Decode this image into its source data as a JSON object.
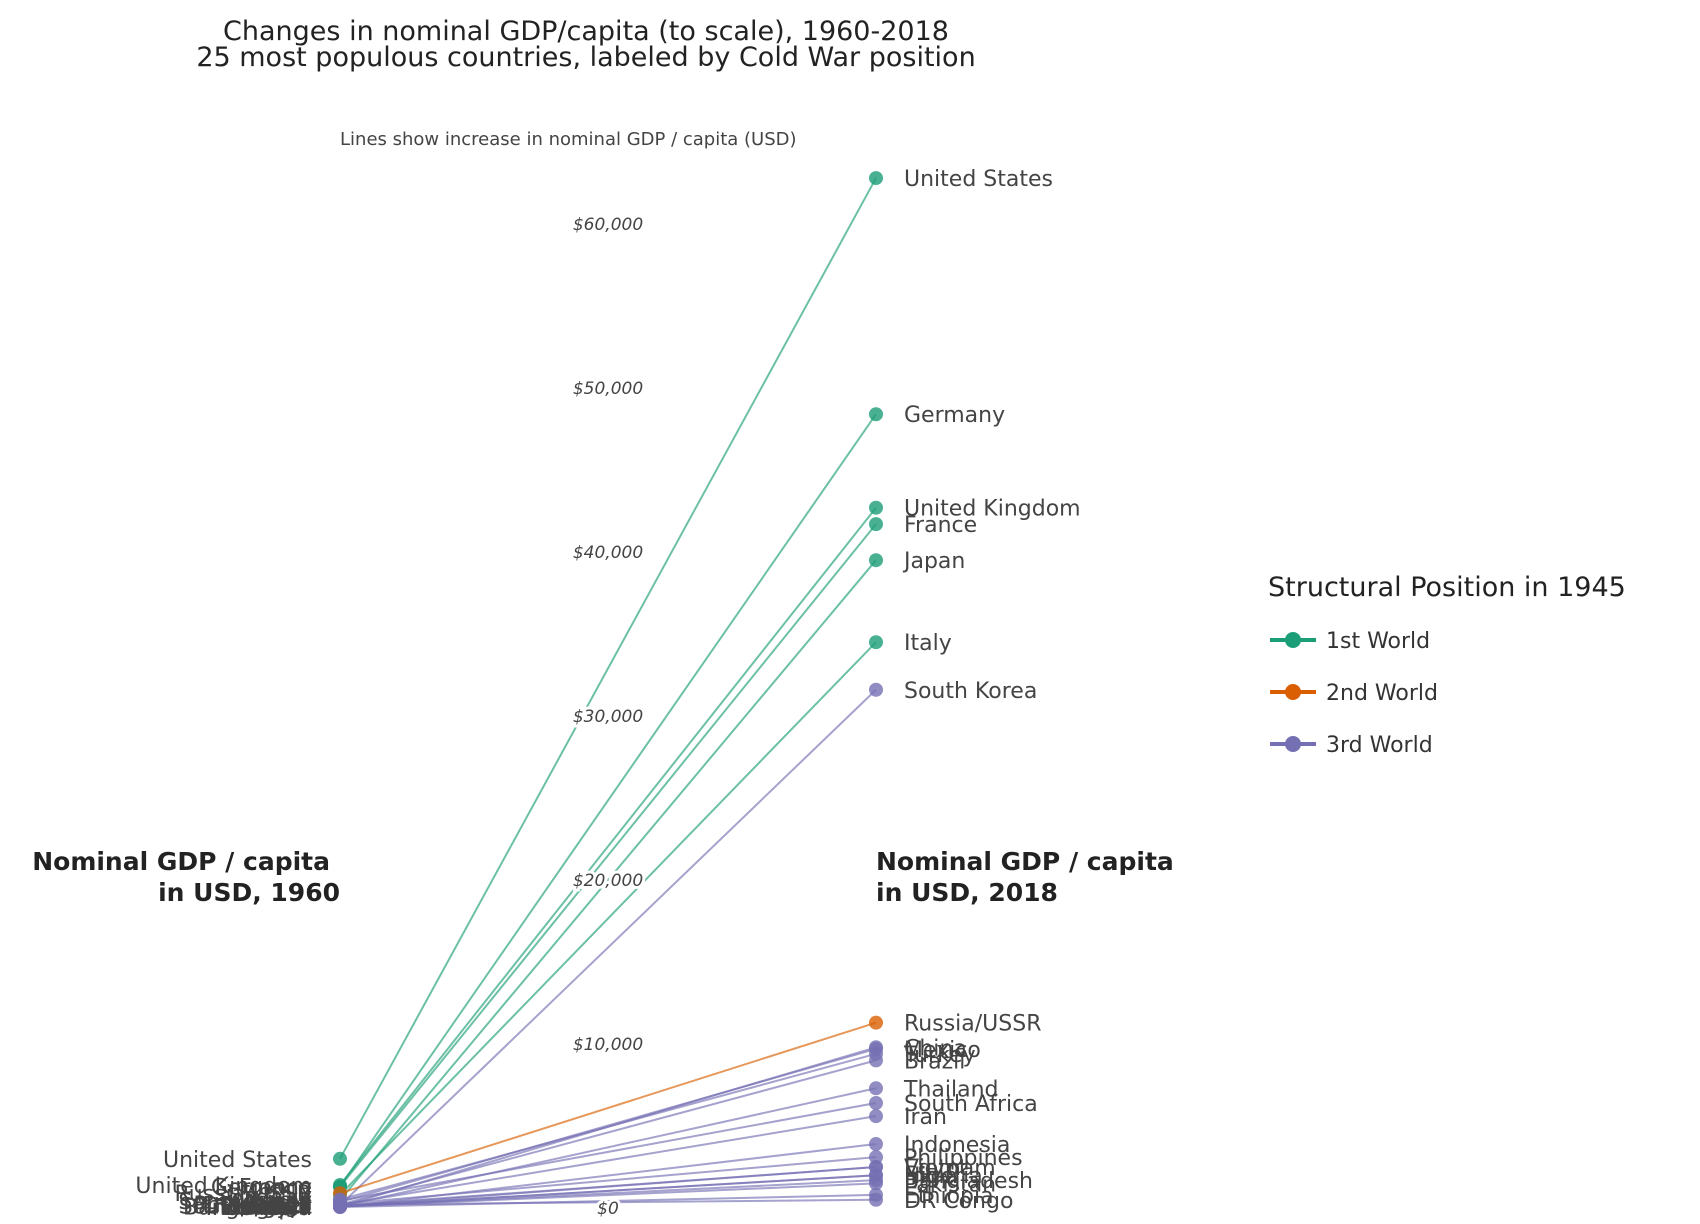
{
  "chart_data": {
    "type": "slope",
    "title": "Changes in nominal GDP/capita (to scale), 1960-2018",
    "subtitle": "25 most populous countries, labeled by Cold War position",
    "axis_note": "Lines show increase in nominal GDP / capita (USD)",
    "left_header": [
      "Nominal GDP / capita",
      "in USD, 1960"
    ],
    "right_header": [
      "Nominal GDP / capita",
      "in USD, 2018"
    ],
    "ylim": [
      0,
      65000
    ],
    "y_ticks": [
      {
        "value": 0,
        "label": "$0"
      },
      {
        "value": 10000,
        "label": "$10,000"
      },
      {
        "value": 20000,
        "label": "$20,000"
      },
      {
        "value": 30000,
        "label": "$30,000"
      },
      {
        "value": 40000,
        "label": "$40,000"
      },
      {
        "value": 50000,
        "label": "$50,000"
      },
      {
        "value": 60000,
        "label": "$60,000"
      }
    ],
    "legend": {
      "title": "Structural Position in 1945",
      "entries": [
        {
          "key": "1st",
          "label": "1st World",
          "color": "#1b9e77"
        },
        {
          "key": "2nd",
          "label": "2nd World",
          "color": "#d95f02"
        },
        {
          "key": "3rd",
          "label": "3rd World",
          "color": "#7570b3"
        }
      ]
    },
    "series": [
      {
        "name": "United States",
        "group": "1st",
        "y1960": 3000,
        "y2018": 62800
      },
      {
        "name": "Germany",
        "group": "1st",
        "y1960": 1300,
        "y2018": 48400
      },
      {
        "name": "United Kingdom",
        "group": "1st",
        "y1960": 1400,
        "y2018": 42700
      },
      {
        "name": "France",
        "group": "1st",
        "y1960": 1300,
        "y2018": 41700
      },
      {
        "name": "Japan",
        "group": "1st",
        "y1960": 480,
        "y2018": 39500
      },
      {
        "name": "Italy",
        "group": "1st",
        "y1960": 800,
        "y2018": 34500
      },
      {
        "name": "South Korea",
        "group": "3rd",
        "y1960": 160,
        "y2018": 31600
      },
      {
        "name": "Russia/USSR",
        "group": "2nd",
        "y1960": 900,
        "y2018": 11300
      },
      {
        "name": "China",
        "group": "3rd",
        "y1960": 90,
        "y2018": 9800
      },
      {
        "name": "Mexico",
        "group": "3rd",
        "y1960": 360,
        "y2018": 9700
      },
      {
        "name": "Turkey",
        "group": "3rd",
        "y1960": 510,
        "y2018": 9400
      },
      {
        "name": "Brazil",
        "group": "3rd",
        "y1960": 210,
        "y2018": 9000
      },
      {
        "name": "Thailand",
        "group": "3rd",
        "y1960": 100,
        "y2018": 7300
      },
      {
        "name": "South Africa",
        "group": "3rd",
        "y1960": 440,
        "y2018": 6400
      },
      {
        "name": "Iran",
        "group": "3rd",
        "y1960": 200,
        "y2018": 5600
      },
      {
        "name": "Indonesia",
        "group": "3rd",
        "y1960": 60,
        "y2018": 3900
      },
      {
        "name": "Philippines",
        "group": "3rd",
        "y1960": 250,
        "y2018": 3100
      },
      {
        "name": "Egypt",
        "group": "3rd",
        "y1960": 150,
        "y2018": 2500
      },
      {
        "name": "Vietnam",
        "group": "3rd",
        "y1960": 100,
        "y2018": 2500
      },
      {
        "name": "Nigeria",
        "group": "3rd",
        "y1960": 90,
        "y2018": 2000
      },
      {
        "name": "India",
        "group": "3rd",
        "y1960": 80,
        "y2018": 2000
      },
      {
        "name": "Bangladesh",
        "group": "3rd",
        "y1960": 90,
        "y2018": 1700
      },
      {
        "name": "Pakistan",
        "group": "3rd",
        "y1960": 80,
        "y2018": 1500
      },
      {
        "name": "Ethiopia",
        "group": "3rd",
        "y1960": 60,
        "y2018": 800
      },
      {
        "name": "DR Congo",
        "group": "3rd",
        "y1960": 200,
        "y2018": 500
      }
    ]
  }
}
